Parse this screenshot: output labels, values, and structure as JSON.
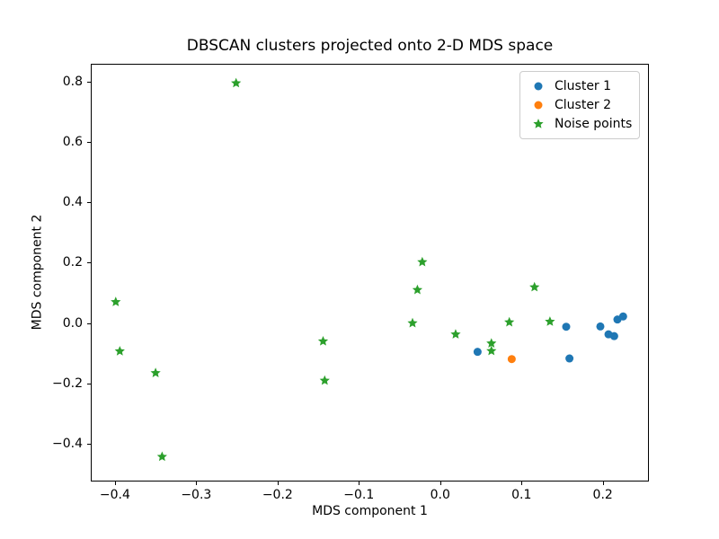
{
  "chart_data": {
    "type": "scatter",
    "title": "DBSCAN clusters projected onto 2-D MDS space",
    "xlabel": "MDS component 1",
    "ylabel": "MDS component 2",
    "xlim": [
      -0.4297,
      0.2567
    ],
    "ylim": [
      -0.524,
      0.858
    ],
    "grid": false,
    "xticks": {
      "values": [
        -0.4,
        -0.3,
        -0.2,
        -0.1,
        0.0,
        0.1,
        0.2
      ],
      "labels": [
        "−0.4",
        "−0.3",
        "−0.2",
        "−0.1",
        "0.0",
        "0.1",
        "0.2"
      ]
    },
    "yticks": {
      "values": [
        0.8,
        0.6,
        0.4,
        0.2,
        0.0,
        -0.2,
        -0.4
      ],
      "labels": [
        "0.8",
        "0.6",
        "0.4",
        "0.2",
        "0.0",
        "−0.2",
        "−0.4"
      ]
    },
    "legend": {
      "position": "upper right",
      "entries": [
        {
          "label": "Cluster 1",
          "marker": "circle",
          "color": "#1f77b4"
        },
        {
          "label": "Cluster 2",
          "marker": "circle",
          "color": "#ff7f0e"
        },
        {
          "label": "Noise points",
          "marker": "star",
          "color": "#2ca02c"
        }
      ]
    },
    "series": [
      {
        "name": "Cluster 1",
        "marker": "circle",
        "color": "#1f77b4",
        "points": [
          [
            0.046,
            -0.095
          ],
          [
            0.155,
            -0.012
          ],
          [
            0.159,
            -0.117
          ],
          [
            0.197,
            -0.011
          ],
          [
            0.207,
            -0.037
          ],
          [
            0.214,
            -0.043
          ],
          [
            0.218,
            0.012
          ],
          [
            0.225,
            0.022
          ]
        ]
      },
      {
        "name": "Cluster 2",
        "marker": "circle",
        "color": "#ff7f0e",
        "points": [
          [
            0.088,
            -0.119
          ]
        ]
      },
      {
        "name": "Noise points",
        "marker": "star",
        "color": "#2ca02c",
        "points": [
          [
            -0.399,
            0.07
          ],
          [
            -0.394,
            -0.093
          ],
          [
            -0.35,
            -0.165
          ],
          [
            -0.342,
            -0.442
          ],
          [
            -0.251,
            0.794
          ],
          [
            -0.144,
            -0.06
          ],
          [
            -0.142,
            -0.19
          ],
          [
            -0.034,
            0.0
          ],
          [
            -0.028,
            0.11
          ],
          [
            -0.022,
            0.202
          ],
          [
            0.019,
            -0.037
          ],
          [
            0.063,
            -0.067
          ],
          [
            0.063,
            -0.092
          ],
          [
            0.085,
            0.003
          ],
          [
            0.116,
            0.119
          ],
          [
            0.135,
            0.005
          ]
        ]
      }
    ]
  }
}
